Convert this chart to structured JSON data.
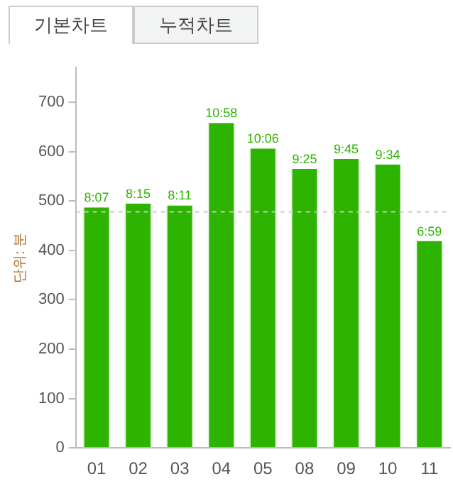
{
  "chart_data": {
    "type": "bar",
    "ylabel": "단위: 분",
    "annotations": [
      "기본차트",
      "누적차트"
    ],
    "categories": [
      "01",
      "02",
      "03",
      "04",
      "05",
      "08",
      "09",
      "10",
      "11"
    ],
    "values": [
      487,
      495,
      491,
      658,
      606,
      565,
      585,
      574,
      419
    ],
    "value_labels": [
      "8:07",
      "8:15",
      "8:11",
      "10:58",
      "10:06",
      "9:25",
      "9:45",
      "9:34",
      "6:59"
    ],
    "color": "#2db400",
    "ylim": [
      0,
      770
    ],
    "yticks": [
      0,
      100,
      200,
      300,
      400,
      500,
      600,
      700
    ],
    "ref_lines": [
      {
        "axis": "y",
        "value": 478,
        "color": "#c8c8c8",
        "line_style": "dashed"
      }
    ],
    "grid": false,
    "legend": false
  }
}
